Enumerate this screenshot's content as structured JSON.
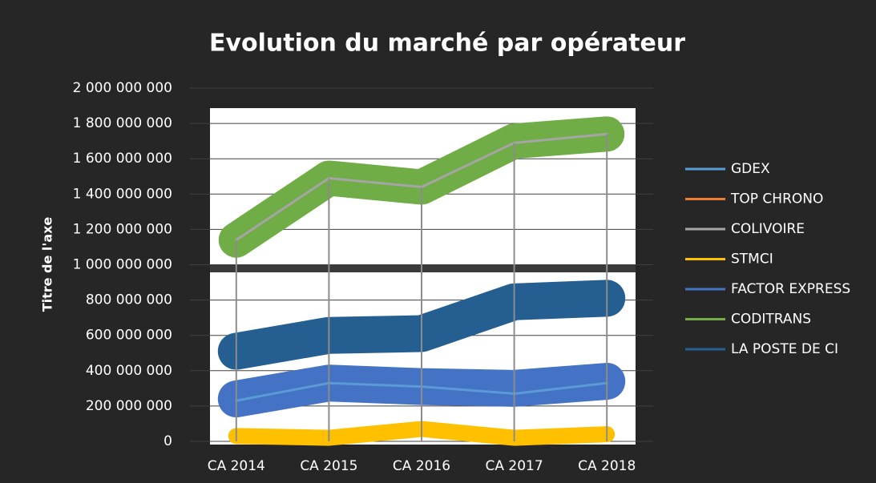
{
  "chart_data": {
    "type": "line",
    "title": "Evolution du marché par opérateur",
    "y_label": "Titre de l'axe",
    "categories": [
      "CA 2014",
      "CA 2015",
      "CA 2016",
      "CA 2017",
      "CA 2018"
    ],
    "ylim": [
      0,
      2000000000
    ],
    "yticks": [
      0,
      {
        "value": 200000000,
        "label": "200 000 000"
      },
      {
        "value": 400000000,
        "label": "400 000 000"
      },
      {
        "value": 600000000,
        "label": "600 000 000"
      },
      {
        "value": 800000000,
        "label": "800 000 000"
      },
      {
        "value": 1000000000,
        "label": "1 000 000 000"
      },
      {
        "value": 1200000000,
        "label": "1 200 000 000"
      },
      {
        "value": 1400000000,
        "label": "1 400 000 000"
      },
      {
        "value": 1600000000,
        "label": "1 600 000 000"
      },
      {
        "value": 1800000000,
        "label": "1 800 000 000"
      },
      {
        "value": 2000000000,
        "label": "2 000 000 000"
      }
    ],
    "grid": true,
    "legend": "right",
    "series": [
      {
        "name": "GDEX",
        "color": "#5b9bd5",
        "values": [
          230000000,
          330000000,
          310000000,
          270000000,
          330000000
        ]
      },
      {
        "name": "TOP CHRONO",
        "color": "#ed7d31",
        "values": [
          null,
          null,
          null,
          null,
          null
        ]
      },
      {
        "name": "COLIVOIRE",
        "color": "#a5a5a5",
        "values": [
          1140000000,
          1490000000,
          1440000000,
          1690000000,
          1740000000
        ]
      },
      {
        "name": "STMCI",
        "color": "#ffc000",
        "values": [
          30000000,
          20000000,
          70000000,
          20000000,
          40000000
        ]
      },
      {
        "name": "FACTOR EXPRESS",
        "color": "#4472c4",
        "values": [
          240000000,
          330000000,
          310000000,
          300000000,
          340000000
        ]
      },
      {
        "name": "CODITRANS",
        "color": "#70ad47",
        "values": [
          1140000000,
          1490000000,
          1440000000,
          1700000000,
          1740000000
        ]
      },
      {
        "name": "LA POSTE DE CI",
        "color": "#255e91",
        "values": [
          510000000,
          600000000,
          610000000,
          790000000,
          810000000
        ]
      }
    ]
  }
}
